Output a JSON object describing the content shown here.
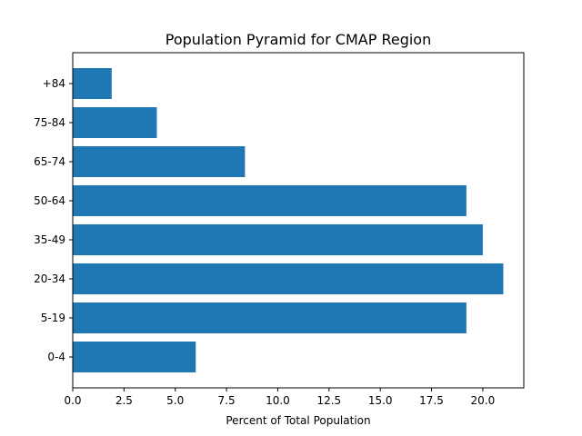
{
  "chart_data": {
    "type": "bar",
    "orientation": "horizontal",
    "title": "Population Pyramid for CMAP Region",
    "xlabel": "Percent of Total Population",
    "ylabel": "",
    "categories": [
      "0-4",
      "5-19",
      "20-34",
      "35-49",
      "50-64",
      "65-74",
      "75-84",
      "+84"
    ],
    "values": [
      6.0,
      19.2,
      21.0,
      20.0,
      19.2,
      8.4,
      4.1,
      1.9
    ],
    "xlim": [
      0,
      22.0
    ],
    "xticks": [
      "0.0",
      "2.5",
      "5.0",
      "7.5",
      "10.0",
      "12.5",
      "15.0",
      "17.5",
      "20.0"
    ],
    "grid": false,
    "legend": "none",
    "bar_color": "#1f77b4"
  }
}
